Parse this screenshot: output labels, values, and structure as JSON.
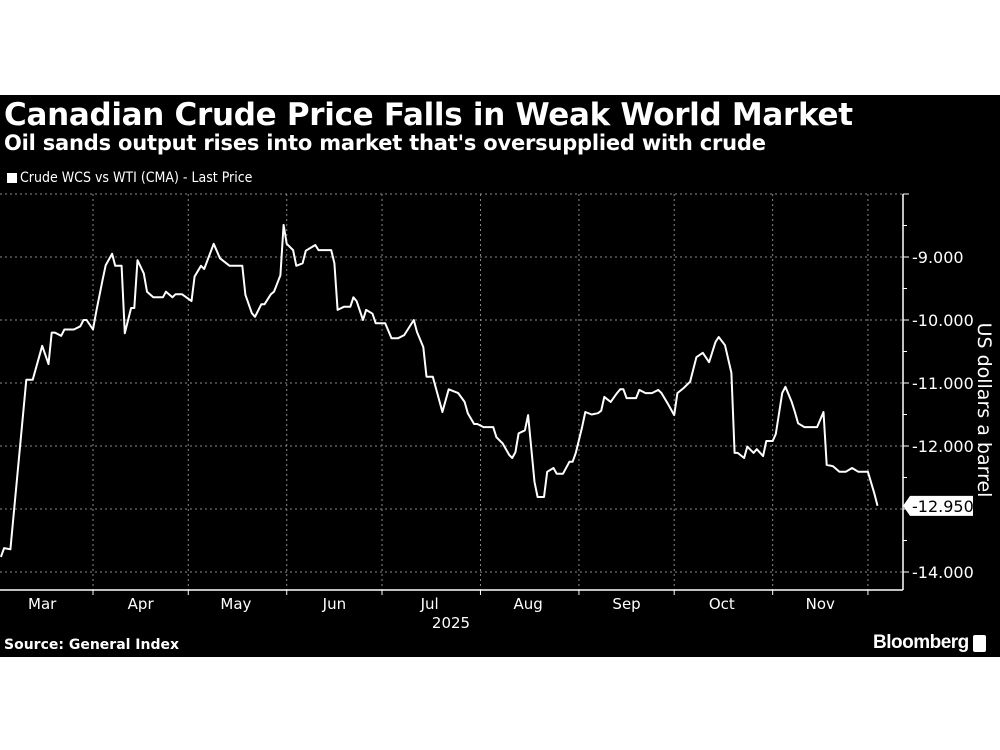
{
  "header": {
    "title": "Canadian Crude Price Falls in Weak World Market",
    "subtitle": "Oil sands output rises into market that's oversupplied with crude"
  },
  "footer": {
    "source": "Source: General Index",
    "brand": "Bloomberg"
  },
  "colors": {
    "background": "#000000",
    "line": "#ffffff",
    "grid": "#8a8a8a"
  },
  "chart_data": {
    "type": "line",
    "title": "Canadian Crude Price Falls in Weak World Market",
    "subtitle": "Oil sands output rises into market that's oversupplied with crude",
    "ylabel": "US dollars a barrel",
    "xlabel": "2025",
    "ylim": [
      -14.3,
      -8
    ],
    "y_axis_side": "right",
    "yticks": [
      -9,
      -10,
      -11,
      -12,
      -14
    ],
    "ytick_labels": [
      "-9.000",
      "-10.000",
      "-11.000",
      "-12.000",
      "-14.000"
    ],
    "xtick_labels": [
      "Mar",
      "Apr",
      "May",
      "Jun",
      "Jul",
      "Aug",
      "Sep",
      "Oct",
      "Nov"
    ],
    "x_year_label": "2025",
    "grid": true,
    "legend_position": "top-left",
    "last_value_label": "-12.950",
    "series": [
      {
        "name": "Crude WCS vs WTI (CMA) - Last Price",
        "x": [
          "2025-03-03",
          "2025-03-04",
          "2025-03-06",
          "2025-03-11",
          "2025-03-13",
          "2025-03-16",
          "2025-03-18",
          "2025-03-19",
          "2025-03-20",
          "2025-03-22",
          "2025-03-23",
          "2025-03-26",
          "2025-03-28",
          "2025-03-29",
          "2025-03-30",
          "2025-04-01",
          "2025-04-02",
          "2025-04-04",
          "2025-04-05",
          "2025-04-07",
          "2025-04-08",
          "2025-04-10",
          "2025-04-11",
          "2025-04-13",
          "2025-04-14",
          "2025-04-15",
          "2025-04-17",
          "2025-04-18",
          "2025-04-20",
          "2025-04-23",
          "2025-04-24",
          "2025-04-26",
          "2025-04-27",
          "2025-04-29",
          "2025-05-02",
          "2025-05-03",
          "2025-05-05",
          "2025-05-06",
          "2025-05-09",
          "2025-05-11",
          "2025-05-14",
          "2025-05-18",
          "2025-05-19",
          "2025-05-21",
          "2025-05-22",
          "2025-05-24",
          "2025-05-25",
          "2025-05-27",
          "2025-05-28",
          "2025-05-30",
          "2025-05-31",
          "2025-06-01",
          "2025-06-03",
          "2025-06-04",
          "2025-06-06",
          "2025-06-07",
          "2025-06-10",
          "2025-06-11",
          "2025-06-15",
          "2025-06-16",
          "2025-06-17",
          "2025-06-19",
          "2025-06-21",
          "2025-06-22",
          "2025-06-23",
          "2025-06-25",
          "2025-06-26",
          "2025-06-28",
          "2025-06-29",
          "2025-07-02",
          "2025-07-04",
          "2025-07-06",
          "2025-07-08",
          "2025-07-11",
          "2025-07-12",
          "2025-07-14",
          "2025-07-15",
          "2025-07-17",
          "2025-07-20",
          "2025-07-22",
          "2025-07-25",
          "2025-07-27",
          "2025-07-28",
          "2025-07-30",
          "2025-07-31",
          "2025-08-02",
          "2025-08-05",
          "2025-08-06",
          "2025-08-08",
          "2025-08-10",
          "2025-08-11",
          "2025-08-12",
          "2025-08-13",
          "2025-08-15",
          "2025-08-16",
          "2025-08-18",
          "2025-08-19",
          "2025-08-21",
          "2025-08-22",
          "2025-08-24",
          "2025-08-25",
          "2025-08-27",
          "2025-08-29",
          "2025-08-30",
          "2025-08-31",
          "2025-09-02",
          "2025-09-03",
          "2025-09-05",
          "2025-09-07",
          "2025-09-08",
          "2025-09-09",
          "2025-09-11",
          "2025-09-13",
          "2025-09-14",
          "2025-09-15",
          "2025-09-16",
          "2025-09-19",
          "2025-09-20",
          "2025-09-22",
          "2025-09-24",
          "2025-09-26",
          "2025-09-27",
          "2025-09-29",
          "2025-10-01",
          "2025-10-02",
          "2025-10-04",
          "2025-10-06",
          "2025-10-08",
          "2025-10-10",
          "2025-10-12",
          "2025-10-14",
          "2025-10-15",
          "2025-10-17",
          "2025-10-19",
          "2025-10-20",
          "2025-10-21",
          "2025-10-23",
          "2025-10-24",
          "2025-10-26",
          "2025-10-27",
          "2025-10-29",
          "2025-10-30",
          "2025-11-01",
          "2025-11-02",
          "2025-11-04",
          "2025-11-05",
          "2025-11-07",
          "2025-11-08",
          "2025-11-09",
          "2025-11-11",
          "2025-11-15",
          "2025-11-17",
          "2025-11-18",
          "2025-11-20",
          "2025-11-22",
          "2025-11-24",
          "2025-11-26",
          "2025-11-28",
          "2025-12-01",
          "2025-12-03",
          "2025-12-04"
        ],
        "values": [
          -13.76,
          -13.62,
          -13.64,
          -10.95,
          -10.95,
          -10.41,
          -10.7,
          -10.2,
          -10.2,
          -10.25,
          -10.15,
          -10.15,
          -10.1,
          -10.0,
          -10.0,
          -10.15,
          -9.87,
          -9.37,
          -9.13,
          -8.95,
          -9.14,
          -9.14,
          -10.21,
          -9.81,
          -9.81,
          -9.05,
          -9.26,
          -9.55,
          -9.64,
          -9.64,
          -9.55,
          -9.64,
          -9.59,
          -9.59,
          -9.7,
          -9.31,
          -9.14,
          -9.19,
          -8.79,
          -9.02,
          -9.14,
          -9.14,
          -9.6,
          -9.89,
          -9.95,
          -9.75,
          -9.75,
          -9.59,
          -9.55,
          -9.29,
          -8.49,
          -8.79,
          -8.89,
          -9.14,
          -9.1,
          -8.9,
          -8.81,
          -8.89,
          -8.89,
          -9.1,
          -9.84,
          -9.79,
          -9.79,
          -9.64,
          -9.7,
          -10.0,
          -9.84,
          -9.9,
          -10.05,
          -10.05,
          -10.29,
          -10.29,
          -10.24,
          -10.0,
          -10.19,
          -10.43,
          -10.9,
          -10.9,
          -11.46,
          -11.1,
          -11.16,
          -11.3,
          -11.48,
          -11.65,
          -11.65,
          -11.7,
          -11.7,
          -11.86,
          -11.96,
          -12.14,
          -12.19,
          -12.1,
          -11.8,
          -11.75,
          -11.51,
          -12.57,
          -12.81,
          -12.81,
          -12.41,
          -12.35,
          -12.44,
          -12.44,
          -12.25,
          -12.25,
          -12.11,
          -11.7,
          -11.46,
          -11.5,
          -11.48,
          -11.44,
          -11.22,
          -11.3,
          -11.16,
          -11.1,
          -11.1,
          -11.24,
          -11.24,
          -11.11,
          -11.16,
          -11.16,
          -11.11,
          -11.16,
          -11.33,
          -11.51,
          -11.16,
          -11.08,
          -10.98,
          -10.59,
          -10.52,
          -10.67,
          -10.35,
          -10.27,
          -10.4,
          -10.84,
          -12.11,
          -12.11,
          -12.19,
          -12.01,
          -12.11,
          -12.05,
          -12.16,
          -11.92,
          -11.92,
          -11.81,
          -11.16,
          -11.06,
          -11.3,
          -11.46,
          -11.64,
          -11.7,
          -11.7,
          -11.46,
          -12.3,
          -12.32,
          -12.41,
          -12.41,
          -12.35,
          -12.41,
          -12.41,
          -12.75,
          -12.95
        ]
      }
    ]
  }
}
